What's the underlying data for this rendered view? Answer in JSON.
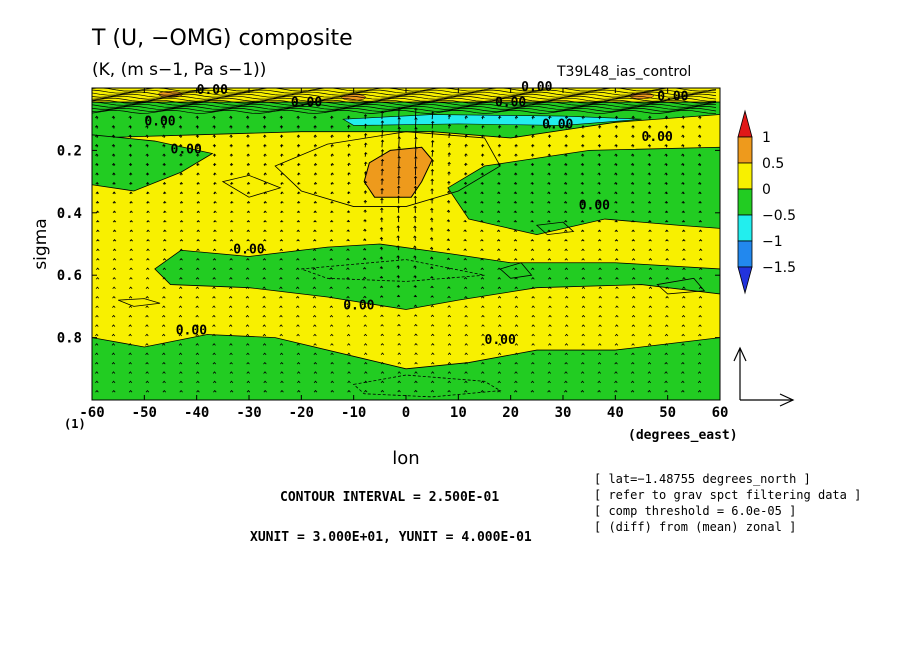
{
  "chart_data": {
    "type": "heatmap",
    "title": "T (U, −OMG) composite",
    "subtitle": "(K, (m s−1, Pa s−1))",
    "run_label": "T39L48_ias_control",
    "xlabel": "lon",
    "x_unit_label": "(degrees_east)",
    "ylabel": "sigma",
    "bottom_label": "(1)",
    "xlim": [
      -60,
      60
    ],
    "ylim": [
      1.0,
      0.0
    ],
    "x_ticks": [
      -60,
      -50,
      -40,
      -30,
      -20,
      -10,
      0,
      10,
      20,
      30,
      40,
      50,
      60
    ],
    "y_ticks": [
      0.2,
      0.4,
      0.6,
      0.8
    ],
    "colorbar": {
      "levels": [
        "1",
        "0.5",
        "0",
        "−0.5",
        "−1",
        "−1.5"
      ],
      "colors": [
        "#e01818",
        "#ee9a1c",
        "#f8f000",
        "#22cc22",
        "#22eeee",
        "#2288ee",
        "#2233dd"
      ]
    },
    "colors": {
      "yellow": "#f8f000",
      "green": "#22cc22",
      "orange": "#ee9a1c",
      "cyan": "#22eeee"
    },
    "contour_label": "0.00",
    "orange_region": {
      "lon": [
        -8,
        5
      ],
      "sigma": [
        0.19,
        0.35
      ],
      "value_range": "0.25 to 0.5"
    },
    "green_regions": [
      {
        "name": "upper band",
        "lon": [
          -60,
          60
        ],
        "sigma": [
          0.05,
          0.16
        ]
      },
      {
        "name": "west upper tongue",
        "lon": [
          -60,
          -37
        ],
        "sigma": [
          0.15,
          0.33
        ]
      },
      {
        "name": "east mid tongue",
        "lon": [
          10,
          60
        ],
        "sigma": [
          0.2,
          0.47
        ]
      },
      {
        "name": "mid band",
        "lon": [
          -48,
          60
        ],
        "sigma": [
          0.5,
          0.7
        ]
      },
      {
        "name": "lower band",
        "lon": [
          -60,
          60
        ],
        "sigma": [
          0.8,
          1.0
        ]
      }
    ],
    "annotations": {
      "contour_interval": "CONTOUR INTERVAL = 2.500E-01",
      "units": "XUNIT = 3.000E+01, YUNIT = 4.000E-01",
      "info": [
        "[ lat=−1.48755 degrees_north ]",
        "[ refer to grav spct filtering data ]",
        "[ comp threshold = 6.0e-05 ]",
        "[ (diff) from (mean) zonal ]"
      ]
    }
  }
}
